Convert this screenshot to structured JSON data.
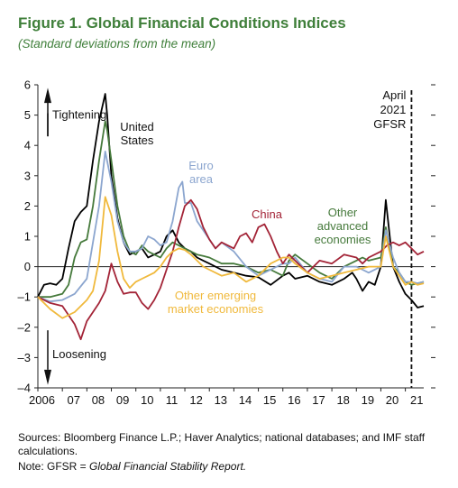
{
  "title": "Figure 1. Global Financial Conditions Indices",
  "subtitle": "(Standard deviations from the mean)",
  "sources": "Sources: Bloomberg Finance L.P.; Haver Analytics; national databases; and IMF staff calculations.",
  "note_prefix": "Note: GFSR = ",
  "note_italic": "Global Financial Stability Report.",
  "chart_data": {
    "type": "line",
    "x_range": [
      2006,
      2021.75
    ],
    "ylim": [
      -4,
      6
    ],
    "yticks": [
      -4,
      -3,
      -2,
      -1,
      0,
      1,
      2,
      3,
      4,
      5,
      6
    ],
    "ytick_labels": [
      "–4",
      "–3",
      "–2",
      "–1",
      "0",
      "1",
      "2",
      "3",
      "4",
      "5",
      "6"
    ],
    "xticks": [
      2006,
      2007,
      2008,
      2009,
      2010,
      2011,
      2012,
      2013,
      2014,
      2015,
      2016,
      2017,
      2018,
      2019,
      2020,
      2021
    ],
    "xtick_labels": [
      "2006",
      "07",
      "08",
      "09",
      "10",
      "11",
      "12",
      "13",
      "14",
      "15",
      "16",
      "17",
      "18",
      "19",
      "20",
      "21"
    ],
    "right_axis_ticks": true,
    "grid": false,
    "annotations": {
      "tightening": "Tightening",
      "loosening": "Loosening",
      "gfsr_line_x": 2021.25,
      "gfsr_label": [
        "April",
        "2021",
        "GFSR"
      ]
    },
    "series": [
      {
        "name": "United States",
        "label_lines": [
          "United",
          "States"
        ],
        "color": "#000000",
        "x": [
          2006,
          2006.25,
          2006.5,
          2006.75,
          2007,
          2007.25,
          2007.5,
          2007.75,
          2008,
          2008.25,
          2008.5,
          2008.75,
          2008.83,
          2009,
          2009.25,
          2009.5,
          2009.75,
          2010,
          2010.25,
          2010.5,
          2010.75,
          2011,
          2011.25,
          2011.5,
          2011.75,
          2012,
          2012.25,
          2012.5,
          2012.75,
          2013,
          2013.5,
          2014,
          2014.5,
          2015,
          2015.5,
          2016,
          2016.25,
          2016.5,
          2017,
          2017.5,
          2018,
          2018.5,
          2018.83,
          2019,
          2019.25,
          2019.5,
          2019.75,
          2020,
          2020.2,
          2020.5,
          2020.75,
          2021,
          2021.25,
          2021.5,
          2021.75
        ],
        "values": [
          -1.0,
          -0.6,
          -0.55,
          -0.6,
          -0.4,
          0.6,
          1.5,
          1.8,
          2.0,
          3.5,
          4.8,
          5.7,
          5.0,
          3.0,
          1.6,
          0.8,
          0.4,
          0.5,
          0.6,
          0.3,
          0.4,
          0.5,
          1.0,
          1.2,
          0.8,
          0.6,
          0.5,
          0.3,
          0.2,
          0.1,
          -0.1,
          -0.2,
          -0.3,
          -0.35,
          -0.6,
          -0.3,
          -0.2,
          -0.4,
          -0.3,
          -0.5,
          -0.6,
          -0.4,
          -0.2,
          -0.4,
          -0.8,
          -0.5,
          -0.6,
          0.0,
          2.2,
          0.0,
          -0.5,
          -0.9,
          -1.1,
          -1.35,
          -1.3
        ]
      },
      {
        "name": "Other advanced economies",
        "label_lines": [
          "Other",
          "advanced",
          "economies"
        ],
        "color": "#467a3c",
        "x": [
          2006,
          2006.5,
          2007,
          2007.25,
          2007.5,
          2007.75,
          2008,
          2008.25,
          2008.5,
          2008.75,
          2008.83,
          2009,
          2009.25,
          2009.5,
          2009.75,
          2010,
          2010.25,
          2010.5,
          2010.75,
          2011,
          2011.25,
          2011.5,
          2011.75,
          2012,
          2012.25,
          2012.5,
          2012.75,
          2013,
          2013.5,
          2014,
          2014.5,
          2015,
          2015.5,
          2016,
          2016.25,
          2016.5,
          2017,
          2017.5,
          2018,
          2018.5,
          2019,
          2019.25,
          2019.5,
          2020,
          2020.2,
          2020.5,
          2020.75,
          2021,
          2021.25,
          2021.5,
          2021.75
        ],
        "values": [
          -1.0,
          -1.0,
          -0.9,
          -0.6,
          0.3,
          0.8,
          0.9,
          2.0,
          3.5,
          4.8,
          4.5,
          3.5,
          2.0,
          1.0,
          0.5,
          0.4,
          0.7,
          0.5,
          0.4,
          0.3,
          0.6,
          0.8,
          0.7,
          0.6,
          0.5,
          0.4,
          0.35,
          0.3,
          0.1,
          0.1,
          0.0,
          -0.2,
          -0.1,
          -0.3,
          0.2,
          0.4,
          0.1,
          -0.2,
          -0.4,
          0.0,
          0.2,
          0.3,
          0.2,
          0.3,
          1.3,
          0.0,
          -0.2,
          -0.5,
          -0.6,
          -0.55,
          -0.5
        ]
      },
      {
        "name": "Euro area",
        "label_lines": [
          "Euro",
          "area"
        ],
        "color": "#8ca6cf",
        "x": [
          2006,
          2006.5,
          2007,
          2007.5,
          2008,
          2008.25,
          2008.5,
          2008.75,
          2009,
          2009.25,
          2009.5,
          2009.75,
          2010,
          2010.25,
          2010.5,
          2010.75,
          2011,
          2011.25,
          2011.5,
          2011.75,
          2011.9,
          2012,
          2012.25,
          2012.5,
          2012.75,
          2013,
          2013.25,
          2013.5,
          2014,
          2014.5,
          2015,
          2015.5,
          2016,
          2016.25,
          2016.5,
          2017,
          2017.5,
          2018,
          2018.5,
          2019,
          2019.5,
          2020,
          2020.2,
          2020.5,
          2020.75,
          2021,
          2021.25,
          2021.5,
          2021.75
        ],
        "values": [
          -1.0,
          -1.15,
          -1.1,
          -0.9,
          -0.4,
          0.8,
          2.0,
          3.8,
          2.8,
          1.5,
          0.8,
          0.5,
          0.5,
          0.6,
          1.0,
          0.9,
          0.7,
          0.8,
          1.5,
          2.6,
          2.8,
          2.1,
          2.1,
          1.5,
          1.2,
          0.9,
          0.6,
          0.8,
          0.5,
          0.0,
          -0.3,
          -0.1,
          0.1,
          0.1,
          0.3,
          -0.2,
          -0.4,
          -0.5,
          0.0,
          0.0,
          -0.2,
          0.0,
          1.2,
          0.3,
          -0.2,
          -0.5,
          -0.5,
          -0.55,
          -0.5
        ]
      },
      {
        "name": "China",
        "label_lines": [
          "China"
        ],
        "color": "#a32437",
        "x": [
          2006,
          2006.5,
          2007,
          2007.5,
          2007.75,
          2008,
          2008.25,
          2008.5,
          2008.75,
          2009,
          2009.25,
          2009.5,
          2009.75,
          2010,
          2010.25,
          2010.5,
          2010.75,
          2011,
          2011.25,
          2011.5,
          2011.75,
          2012,
          2012.25,
          2012.5,
          2012.75,
          2013,
          2013.25,
          2013.5,
          2013.75,
          2014,
          2014.25,
          2014.5,
          2014.75,
          2015,
          2015.25,
          2015.5,
          2015.75,
          2016,
          2016.25,
          2016.5,
          2017,
          2017.5,
          2018,
          2018.5,
          2019,
          2019.25,
          2019.5,
          2020,
          2020.25,
          2020.5,
          2020.75,
          2021,
          2021.25,
          2021.5,
          2021.75
        ],
        "values": [
          -1.0,
          -1.2,
          -1.3,
          -1.9,
          -2.4,
          -1.8,
          -1.5,
          -1.2,
          -0.8,
          0.1,
          -0.5,
          -0.9,
          -0.85,
          -0.85,
          -1.2,
          -1.4,
          -1.1,
          -0.7,
          -0.1,
          0.5,
          1.3,
          2.0,
          2.2,
          1.9,
          1.3,
          0.9,
          0.6,
          0.8,
          0.7,
          0.6,
          1.0,
          1.1,
          0.8,
          1.3,
          1.4,
          1.0,
          0.5,
          0.1,
          0.4,
          0.2,
          -0.2,
          0.2,
          0.1,
          0.4,
          0.3,
          0.1,
          0.3,
          0.5,
          0.7,
          0.8,
          0.7,
          0.8,
          0.6,
          0.4,
          0.5
        ]
      },
      {
        "name": "Other emerging market economies",
        "label_lines": [
          "Other emerging",
          "market economies"
        ],
        "color": "#f0b93c",
        "x": [
          2006,
          2006.5,
          2007,
          2007.5,
          2008,
          2008.25,
          2008.5,
          2008.75,
          2009,
          2009.25,
          2009.5,
          2009.75,
          2010,
          2010.25,
          2010.5,
          2010.75,
          2011,
          2011.25,
          2011.5,
          2011.75,
          2012,
          2012.25,
          2012.5,
          2012.75,
          2013,
          2013.5,
          2014,
          2014.5,
          2015,
          2015.5,
          2016,
          2016.25,
          2016.5,
          2017,
          2017.5,
          2018,
          2018.5,
          2019,
          2019.5,
          2020,
          2020.2,
          2020.5,
          2020.75,
          2021,
          2021.25,
          2021.5,
          2021.75
        ],
        "values": [
          -1.0,
          -1.4,
          -1.7,
          -1.5,
          -1.1,
          -0.8,
          0.2,
          2.3,
          1.7,
          0.5,
          -0.4,
          -0.7,
          -0.5,
          -0.4,
          -0.3,
          -0.2,
          0.0,
          0.3,
          0.5,
          0.6,
          0.55,
          0.4,
          0.2,
          0.0,
          -0.1,
          -0.3,
          -0.2,
          -0.5,
          -0.3,
          0.1,
          0.3,
          0.3,
          0.1,
          -0.2,
          -0.4,
          -0.3,
          -0.2,
          -0.1,
          0.0,
          0.0,
          1.0,
          0.0,
          -0.3,
          -0.6,
          -0.5,
          -0.6,
          -0.55
        ]
      }
    ]
  }
}
